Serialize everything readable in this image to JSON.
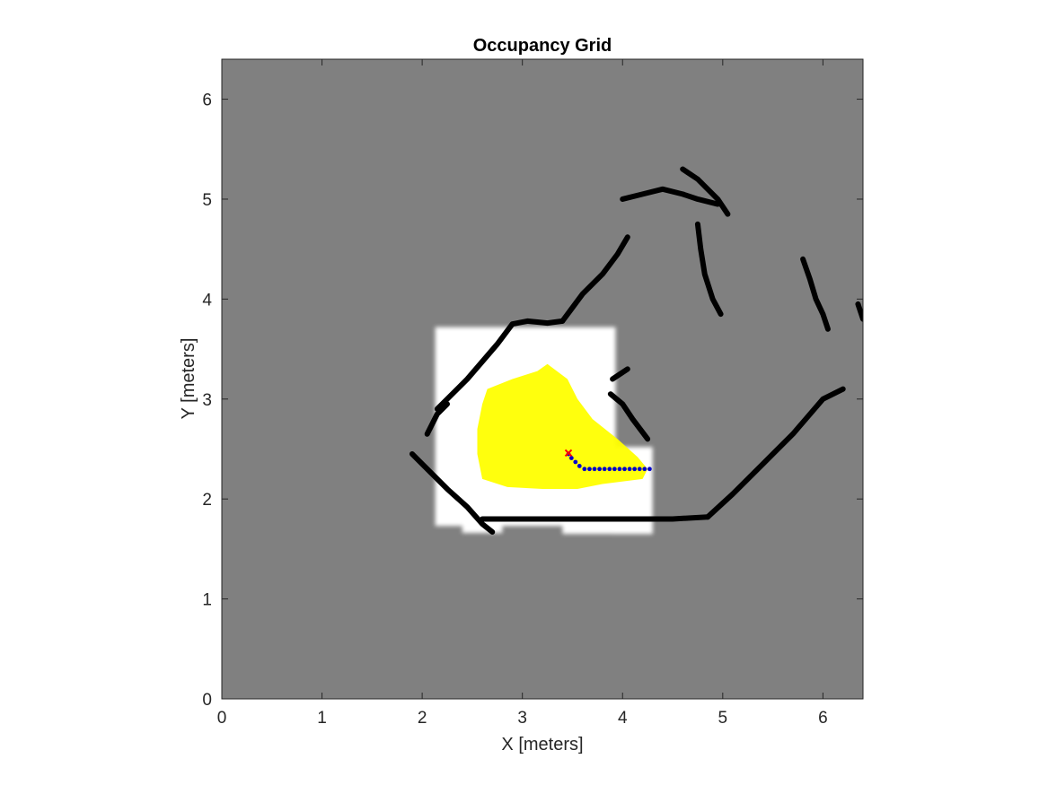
{
  "chart_data": {
    "type": "heatmap",
    "title": "Occupancy Grid",
    "xlabel": "X [meters]",
    "ylabel": "Y [meters]",
    "xlim": [
      0,
      6.4
    ],
    "ylim": [
      0,
      6.4
    ],
    "x_ticks": [
      "0",
      "1",
      "2",
      "3",
      "4",
      "5",
      "6"
    ],
    "y_ticks": [
      "0",
      "1",
      "2",
      "3",
      "4",
      "5",
      "6"
    ],
    "grid": false,
    "colors": {
      "unknown": "#808080",
      "free": "#ffffff",
      "occupied": "#000000",
      "frontier_region": "#ffff00",
      "path": "#0000cc",
      "robot": "#ff0000"
    },
    "free_space": [
      {
        "x0": 2.13,
        "x1": 3.93,
        "y0": 1.73,
        "y1": 3.72
      },
      {
        "x0": 3.9,
        "x1": 4.3,
        "y0": 1.65,
        "y1": 2.52
      },
      {
        "x0": 2.4,
        "x1": 2.8,
        "y0": 1.66,
        "y1": 1.8
      },
      {
        "x0": 3.4,
        "x1": 4.3,
        "y0": 1.65,
        "y1": 1.8
      }
    ],
    "obstacles": [
      {
        "name": "left-wall-upper",
        "points": [
          [
            2.15,
            2.9
          ],
          [
            2.45,
            3.2
          ],
          [
            2.75,
            3.55
          ],
          [
            2.9,
            3.75
          ],
          [
            3.05,
            3.78
          ],
          [
            3.25,
            3.76
          ],
          [
            3.4,
            3.78
          ]
        ]
      },
      {
        "name": "left-wall-lower",
        "points": [
          [
            1.9,
            2.45
          ],
          [
            2.05,
            2.3
          ],
          [
            2.25,
            2.1
          ],
          [
            2.45,
            1.92
          ],
          [
            2.6,
            1.75
          ],
          [
            2.7,
            1.67
          ]
        ]
      },
      {
        "name": "left-wall-notch",
        "points": [
          [
            2.05,
            2.65
          ],
          [
            2.15,
            2.85
          ],
          [
            2.25,
            2.95
          ]
        ]
      },
      {
        "name": "bottom-wall",
        "points": [
          [
            2.6,
            1.8
          ],
          [
            3.0,
            1.8
          ],
          [
            3.5,
            1.8
          ],
          [
            4.0,
            1.8
          ],
          [
            4.5,
            1.8
          ],
          [
            4.85,
            1.82
          ]
        ]
      },
      {
        "name": "right-diagonal-wall",
        "points": [
          [
            4.85,
            1.82
          ],
          [
            5.1,
            2.05
          ],
          [
            5.4,
            2.35
          ],
          [
            5.7,
            2.65
          ],
          [
            6.0,
            3.0
          ],
          [
            6.2,
            3.1
          ]
        ]
      },
      {
        "name": "upper-left-diagonal",
        "points": [
          [
            3.4,
            3.78
          ],
          [
            3.6,
            4.05
          ],
          [
            3.8,
            4.25
          ],
          [
            3.95,
            4.45
          ],
          [
            4.05,
            4.62
          ]
        ]
      },
      {
        "name": "small-stub",
        "points": [
          [
            3.88,
            3.05
          ],
          [
            4.0,
            2.95
          ],
          [
            4.1,
            2.8
          ],
          [
            4.25,
            2.6
          ]
        ]
      },
      {
        "name": "small-stub-2",
        "points": [
          [
            3.9,
            3.2
          ],
          [
            4.05,
            3.3
          ]
        ]
      },
      {
        "name": "top-arc",
        "points": [
          [
            4.0,
            5.0
          ],
          [
            4.2,
            5.05
          ],
          [
            4.4,
            5.1
          ],
          [
            4.6,
            5.05
          ],
          [
            4.75,
            5.0
          ],
          [
            4.95,
            4.95
          ]
        ]
      },
      {
        "name": "top-curl",
        "points": [
          [
            4.6,
            5.3
          ],
          [
            4.75,
            5.2
          ],
          [
            4.95,
            5.0
          ],
          [
            5.05,
            4.85
          ]
        ]
      },
      {
        "name": "vertical-segment",
        "points": [
          [
            4.75,
            4.75
          ],
          [
            4.78,
            4.5
          ],
          [
            4.82,
            4.25
          ],
          [
            4.9,
            4.0
          ],
          [
            4.98,
            3.85
          ]
        ]
      },
      {
        "name": "right-cluster",
        "points": [
          [
            5.8,
            4.4
          ],
          [
            5.87,
            4.2
          ],
          [
            5.93,
            4.0
          ],
          [
            6.0,
            3.85
          ],
          [
            6.05,
            3.7
          ]
        ]
      },
      {
        "name": "edge-scraps",
        "points": [
          [
            6.35,
            3.95
          ],
          [
            6.4,
            3.8
          ]
        ]
      }
    ],
    "frontier_polygon": [
      [
        2.65,
        3.1
      ],
      [
        2.9,
        3.2
      ],
      [
        3.15,
        3.28
      ],
      [
        3.25,
        3.35
      ],
      [
        3.45,
        3.2
      ],
      [
        3.55,
        3.0
      ],
      [
        3.7,
        2.8
      ],
      [
        3.95,
        2.6
      ],
      [
        4.15,
        2.42
      ],
      [
        4.25,
        2.3
      ],
      [
        4.2,
        2.2
      ],
      [
        3.8,
        2.15
      ],
      [
        3.55,
        2.1
      ],
      [
        3.2,
        2.1
      ],
      [
        2.85,
        2.12
      ],
      [
        2.6,
        2.2
      ],
      [
        2.55,
        2.45
      ],
      [
        2.55,
        2.7
      ],
      [
        2.6,
        2.95
      ]
    ],
    "path": {
      "x": [
        3.46,
        3.49,
        3.53,
        3.57,
        3.62,
        3.67,
        3.72,
        3.77,
        3.82,
        3.87,
        3.92,
        3.97,
        4.02,
        4.07,
        4.12,
        4.17,
        4.22,
        4.27
      ],
      "y": [
        2.45,
        2.41,
        2.37,
        2.33,
        2.3,
        2.3,
        2.3,
        2.3,
        2.3,
        2.3,
        2.3,
        2.3,
        2.3,
        2.3,
        2.3,
        2.3,
        2.3,
        2.3
      ]
    },
    "robot_position": {
      "x": 3.46,
      "y": 2.46
    }
  }
}
